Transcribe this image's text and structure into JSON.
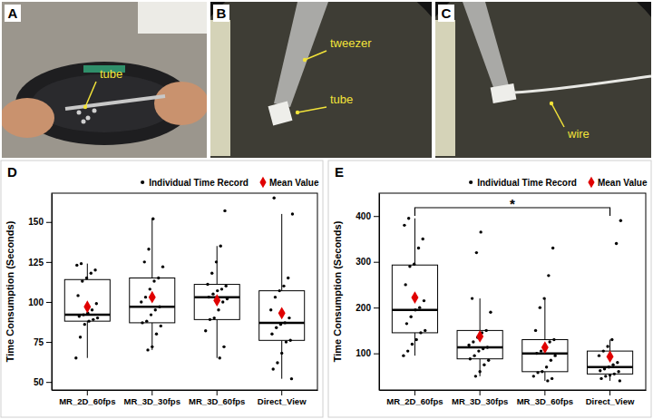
{
  "photos": [
    {
      "letter": "A",
      "labels": [
        "tube"
      ]
    },
    {
      "letter": "B",
      "labels": [
        "tweezer",
        "tube"
      ]
    },
    {
      "letter": "C",
      "labels": [
        "wire"
      ]
    }
  ],
  "chart_data": [
    {
      "type": "box",
      "panel_label": "D",
      "y_label": "Time Consumption (Seconds)",
      "categories": [
        "MR_2D_60fps",
        "MR_3D_30fps",
        "MR_3D_60fps",
        "Direct_View"
      ],
      "boxes": [
        {
          "whisker_low": 65,
          "q1": 88,
          "median": 92,
          "q3": 114,
          "whisker_high": 124
        },
        {
          "whisker_low": 70,
          "q1": 87,
          "median": 97,
          "q3": 115,
          "whisker_high": 152
        },
        {
          "whisker_low": 65,
          "q1": 89,
          "median": 103,
          "q3": 111,
          "whisker_high": 135
        },
        {
          "whisker_low": 52,
          "q1": 76,
          "median": 87,
          "q3": 107,
          "whisker_high": 155
        }
      ],
      "series": [
        {
          "name": "Individual Time Record",
          "color": "#000000",
          "marker": "circle",
          "type": "scatter",
          "values": [
            [
              65,
              78,
              86,
              88,
              89,
              90,
              91,
              92,
              93,
              95,
              99,
              104,
              113,
              115,
              118,
              120,
              123,
              124
            ],
            [
              70,
              72,
              80,
              85,
              87,
              88,
              92,
              95,
              97,
              100,
              103,
              108,
              113,
              115,
              122,
              125,
              133,
              152
            ],
            [
              65,
              72,
              82,
              89,
              90,
              95,
              100,
              102,
              103,
              105,
              107,
              108,
              110,
              111,
              118,
              125,
              135,
              157
            ],
            [
              52,
              58,
              62,
              68,
              75,
              76,
              80,
              84,
              86,
              87,
              90,
              95,
              103,
              107,
              110,
              115,
              155,
              165
            ]
          ]
        },
        {
          "name": "Mean Value",
          "color": "#e00000",
          "marker": "diamond",
          "type": "scatter",
          "values": [
            97,
            103,
            101,
            93
          ]
        }
      ],
      "ylim": [
        45,
        168
      ],
      "yticks": [
        50,
        75,
        100,
        125,
        150
      ],
      "grid": false,
      "legend": "top"
    },
    {
      "type": "box",
      "panel_label": "E",
      "y_label": "Time Consumption (Seconds)",
      "categories": [
        "MR_2D_60fps",
        "MR_3D_30fps",
        "MR_3D_60fps",
        "Direct_View"
      ],
      "boxes": [
        {
          "whisker_low": 95,
          "q1": 145,
          "median": 195,
          "q3": 293,
          "whisker_high": 395
        },
        {
          "whisker_low": 50,
          "q1": 88,
          "median": 113,
          "q3": 150,
          "whisker_high": 220
        },
        {
          "whisker_low": 40,
          "q1": 60,
          "median": 100,
          "q3": 130,
          "whisker_high": 220
        },
        {
          "whisker_low": 40,
          "q1": 55,
          "median": 70,
          "q3": 105,
          "whisker_high": 130
        }
      ],
      "series": [
        {
          "name": "Individual Time Record",
          "color": "#000000",
          "marker": "circle",
          "type": "scatter",
          "values": [
            [
              95,
              105,
              120,
              130,
              145,
              150,
              165,
              180,
              195,
              200,
              215,
              250,
              290,
              295,
              330,
              350,
              380,
              395
            ],
            [
              50,
              60,
              75,
              85,
              88,
              95,
              105,
              110,
              113,
              118,
              125,
              135,
              145,
              150,
              190,
              220,
              320,
              365
            ],
            [
              40,
              45,
              50,
              58,
              60,
              70,
              85,
              95,
              100,
              105,
              115,
              125,
              130,
              150,
              200,
              220,
              270,
              330
            ],
            [
              40,
              45,
              50,
              52,
              55,
              60,
              62,
              66,
              70,
              75,
              80,
              95,
              105,
              115,
              130,
              340,
              390
            ]
          ]
        },
        {
          "name": "Mean Value",
          "color": "#e00000",
          "marker": "diamond",
          "type": "scatter",
          "values": [
            222,
            137,
            113,
            93
          ]
        }
      ],
      "annotations": [
        {
          "text": "*",
          "between": [
            "MR_2D_60fps",
            "Direct_View"
          ]
        }
      ],
      "ylim": [
        20,
        450
      ],
      "yticks": [
        100,
        200,
        300,
        400
      ],
      "grid": false,
      "legend": "top"
    }
  ]
}
